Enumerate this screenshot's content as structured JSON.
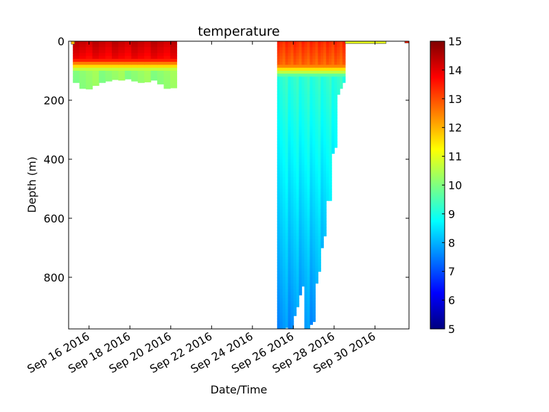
{
  "chart_data": {
    "type": "heatmap",
    "title": "temperature",
    "xlabel": "Date/Time",
    "ylabel": "Depth (m)",
    "x_ticks": [
      "Sep 16 2016",
      "Sep 18 2016",
      "Sep 20 2016",
      "Sep 22 2016",
      "Sep 24 2016",
      "Sep 26 2016",
      "Sep 28 2016",
      "Sep 30 2016"
    ],
    "x_range": [
      "2016-09-15T00:00",
      "2016-10-01T16:00"
    ],
    "y_ticks": [
      "0",
      "200",
      "400",
      "600",
      "800"
    ],
    "ylim": [
      975,
      0
    ],
    "y_inverted": true,
    "colorbar": {
      "label": "",
      "min": 5,
      "max": 15,
      "ticks": [
        "5",
        "6",
        "7",
        "8",
        "9",
        "10",
        "11",
        "12",
        "13",
        "14",
        "15"
      ],
      "colormap": "jet"
    },
    "grid": false,
    "profile_groups": [
      {
        "start": "2016-09-15T05:00",
        "end": "2016-09-20T07:00",
        "max_depth": [
          140,
          160,
          162,
          150,
          140,
          135,
          130,
          132,
          128,
          135,
          140,
          138,
          132,
          145,
          160,
          158
        ],
        "surface_temp": 14.5,
        "mixed_layer_depth": 60,
        "deep_temp": 9.4
      },
      {
        "start": "2016-09-25T05:00",
        "end": "2016-09-28T13:00",
        "max_depth": [
          975,
          975,
          975,
          970,
          975,
          975,
          930,
          900,
          860,
          830,
          975,
          975,
          960,
          950,
          820,
          780,
          700,
          660,
          540,
          540,
          380,
          360,
          180,
          160,
          140
        ],
        "surface_temp": 13.5,
        "mixed_layer_depth": 80,
        "deep_temp": 8.4
      }
    ],
    "surface_strips": [
      {
        "start": "2016-09-15T03:00",
        "end": "2016-09-15T07:00",
        "depth": 10,
        "temp": 12.0
      },
      {
        "start": "2016-09-28T13:00",
        "end": "2016-09-30T13:00",
        "depth": 8,
        "temp": 11.0
      },
      {
        "start": "2016-10-01T11:00",
        "end": "2016-10-01T16:00",
        "depth": 6,
        "temp": 13.5
      }
    ]
  }
}
